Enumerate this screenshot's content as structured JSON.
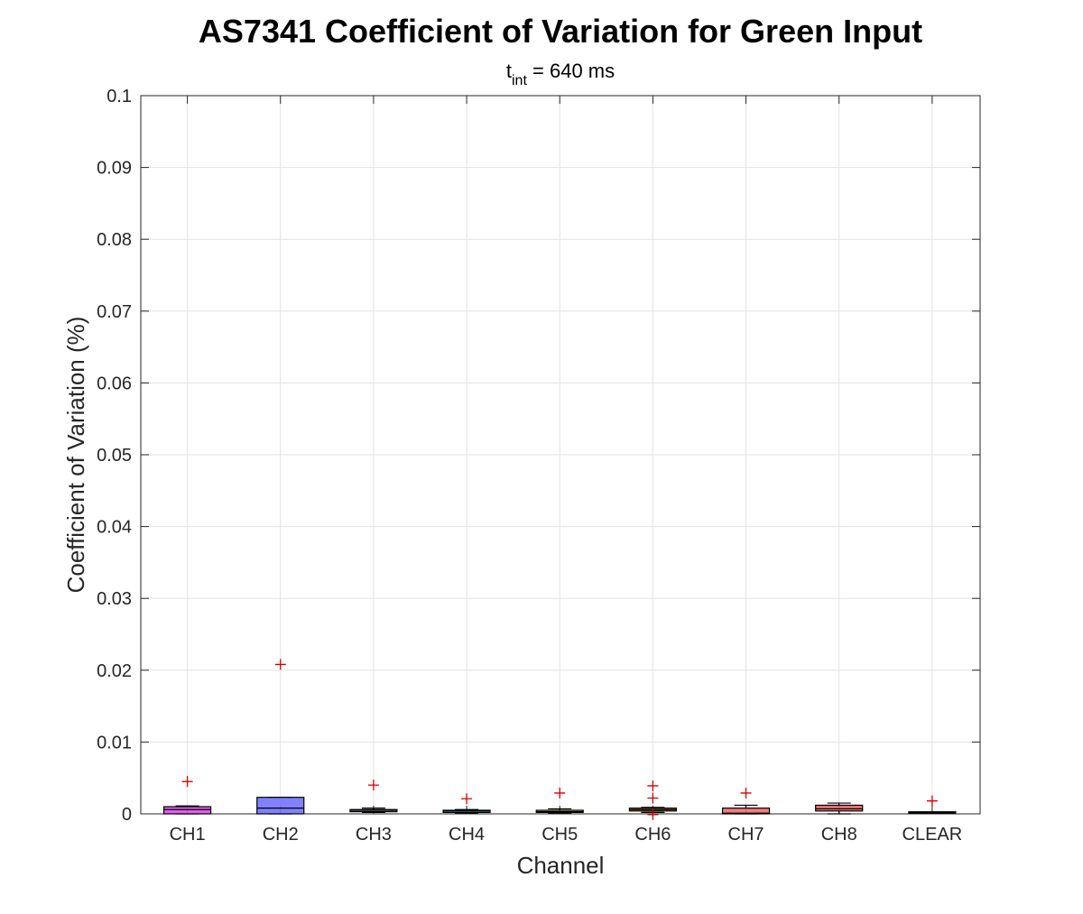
{
  "chart_data": {
    "type": "box",
    "title": "AS7341 Coefficient of Variation for Green Input",
    "subtitle_base": "t",
    "subtitle_sub": "int",
    "subtitle_rest": " = 640 ms",
    "xlabel": "Channel",
    "ylabel": "Coefficient of Variation (%)",
    "ylim": [
      0,
      0.1
    ],
    "yticks": [
      0,
      0.01,
      0.02,
      0.03,
      0.04,
      0.05,
      0.06,
      0.07,
      0.08,
      0.09,
      0.1
    ],
    "ytick_labels": [
      "0",
      "0.01",
      "0.02",
      "0.03",
      "0.04",
      "0.05",
      "0.06",
      "0.07",
      "0.08",
      "0.09",
      "0.1"
    ],
    "grid": true,
    "categories": [
      "CH1",
      "CH2",
      "CH3",
      "CH4",
      "CH5",
      "CH6",
      "CH7",
      "CH8",
      "CLEAR"
    ],
    "boxes": [
      {
        "category": "CH1",
        "color": "#dd4fe8",
        "whisker_low": 0.0,
        "q1": 0.0,
        "median": 0.0006,
        "q3": 0.001,
        "whisker_high": 0.0011,
        "outliers": [
          0.0045
        ]
      },
      {
        "category": "CH2",
        "color": "#7373ff",
        "whisker_low": 0.0,
        "q1": 0.0,
        "median": 0.0008,
        "q3": 0.0023,
        "whisker_high": 0.0023,
        "outliers": [
          0.0208
        ]
      },
      {
        "category": "CH3",
        "color": "#a8c0d0",
        "whisker_low": 0.0002,
        "q1": 0.0003,
        "median": 0.0005,
        "q3": 0.0006,
        "whisker_high": 0.0008,
        "outliers": [
          0.004
        ]
      },
      {
        "category": "CH4",
        "color": "#33b5d4",
        "whisker_low": 0.0001,
        "q1": 0.0002,
        "median": 0.0004,
        "q3": 0.0005,
        "whisker_high": 0.0006,
        "outliers": [
          0.0021
        ]
      },
      {
        "category": "CH5",
        "color": "#d9b84a",
        "whisker_low": 0.0001,
        "q1": 0.0002,
        "median": 0.0003,
        "q3": 0.0005,
        "whisker_high": 0.0007,
        "outliers": [
          0.0029
        ]
      },
      {
        "category": "CH6",
        "color": "#e8862f",
        "whisker_low": 0.0002,
        "q1": 0.0004,
        "median": 0.0006,
        "q3": 0.0008,
        "whisker_high": 0.0009,
        "outliers": [
          0.0039,
          0.0022,
          -0.0001
        ]
      },
      {
        "category": "CH7",
        "color": "#f07070",
        "whisker_low": 0.0,
        "q1": 0.0,
        "median": 0.0001,
        "q3": 0.0008,
        "whisker_high": 0.0012,
        "outliers": [
          0.0029
        ]
      },
      {
        "category": "CH8",
        "color": "#ec6262",
        "whisker_low": 0.0,
        "q1": 0.0004,
        "median": 0.0007,
        "q3": 0.0012,
        "whisker_high": 0.0015,
        "outliers": []
      },
      {
        "category": "CLEAR",
        "color": "#bfbfbf",
        "whisker_low": 0.0001,
        "q1": 0.0001,
        "median": 0.0002,
        "q3": 0.0002,
        "whisker_high": 0.0002,
        "outliers": [
          0.0018
        ]
      }
    ]
  }
}
